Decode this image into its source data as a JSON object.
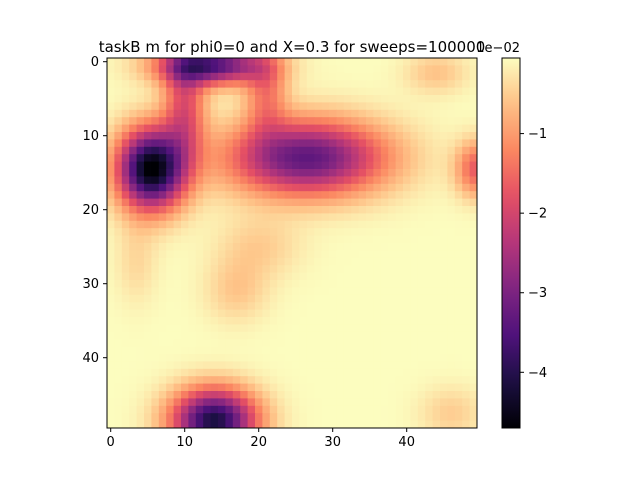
{
  "chart_data": {
    "type": "heatmap",
    "title": "taskB m for  phi0=0 and X=0.3 for sweeps=100000",
    "xlabel": "",
    "ylabel": "",
    "colormap": "magma",
    "grid": false,
    "x_range": [
      -0.5,
      49.5
    ],
    "y_range": [
      49.5,
      -0.5
    ],
    "x_ticks": [
      0,
      10,
      20,
      30,
      40
    ],
    "y_ticks": [
      0,
      10,
      20,
      30,
      40
    ],
    "colorbar": {
      "offset_text": "1e−02",
      "range": [
        -4.7,
        -0.05
      ],
      "ticks": [
        -4,
        -3,
        -2,
        -1
      ],
      "tick_labels": [
        "−4",
        "−3",
        "−2",
        "−1"
      ]
    },
    "grid_size": [
      50,
      50
    ],
    "background_value": -0.05,
    "features": [
      {
        "cx": 5.5,
        "cy": 14.5,
        "sx": 3.2,
        "sy": 3.8,
        "amp": -4.65
      },
      {
        "cx": 26.5,
        "cy": 13.0,
        "sx": 7.5,
        "sy": 3.6,
        "amp": -3.3
      },
      {
        "cx": 14.0,
        "cy": 48.5,
        "sx": 4.0,
        "sy": 3.0,
        "amp": -4.1
      },
      {
        "cx": 13.5,
        "cy": 0.5,
        "sx": 5.0,
        "sy": 1.8,
        "amp": -3.5
      },
      {
        "cx": 10.0,
        "cy": 6.0,
        "sx": 2.0,
        "sy": 5.0,
        "amp": -1.7
      },
      {
        "cx": 49.5,
        "cy": 14.5,
        "sx": 2.0,
        "sy": 2.6,
        "amp": -1.6
      },
      {
        "cx": 44.0,
        "cy": 1.5,
        "sx": 3.0,
        "sy": 2.0,
        "amp": -0.55
      },
      {
        "cx": 20.0,
        "cy": 25.0,
        "sx": 4.0,
        "sy": 3.0,
        "amp": -0.45
      },
      {
        "cx": 17.0,
        "cy": 31.0,
        "sx": 3.0,
        "sy": 3.0,
        "amp": -0.5
      },
      {
        "cx": 3.5,
        "cy": 27.0,
        "sx": 2.0,
        "sy": 4.0,
        "amp": -0.35
      },
      {
        "cx": 46.0,
        "cy": 47.5,
        "sx": 3.0,
        "sy": 2.5,
        "amp": -0.45
      },
      {
        "cx": 21.0,
        "cy": 4.0,
        "sx": 2.0,
        "sy": 4.0,
        "amp": -1.2
      }
    ]
  }
}
